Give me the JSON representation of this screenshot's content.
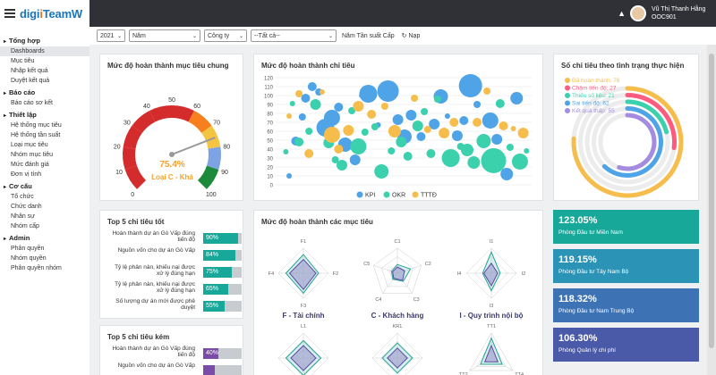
{
  "brand": {
    "logo_a": "digi",
    "logo_b": "i",
    "logo_c": "TeamW"
  },
  "user": {
    "name": "Vũ Thị Thanh Hằng",
    "code": "OOC901"
  },
  "sidebar": {
    "sections": [
      {
        "label": "Tổng hợp",
        "items": [
          "Dashboards",
          "Mục tiêu",
          "Nhập kết quả",
          "Duyệt kết quả"
        ]
      },
      {
        "label": "Báo cáo",
        "items": [
          "Báo cáo sơ kết"
        ]
      },
      {
        "label": "Thiết lập",
        "items": [
          "Hệ thống mục tiêu",
          "Hệ thống tần suất",
          "Loại mục tiêu",
          "Nhóm mục tiêu",
          "Mức đánh giá",
          "Đơn vị tính"
        ]
      },
      {
        "label": "Cơ cấu",
        "items": [
          "Tổ chức",
          "Chức danh",
          "Nhân sự",
          "Nhóm cấp"
        ]
      },
      {
        "label": "Admin",
        "items": [
          "Phân quyền",
          "Nhóm quyền",
          "Phân quyền nhóm"
        ]
      }
    ]
  },
  "filters": {
    "year": "2021",
    "period": "Năm",
    "company": "Công ty",
    "all": "--Tất cả--",
    "freq_label": "Năm Tần suất Cấp",
    "reload": "Nạp"
  },
  "gauge_card": {
    "title": "Mức độ hoàn thành mục tiêu chung",
    "value": "75.4%",
    "grade": "Loại C - Khá",
    "ticks": [
      "0",
      "10",
      "20",
      "30",
      "40",
      "50",
      "60",
      "70",
      "80",
      "90",
      "100"
    ],
    "needle_value": 75.4
  },
  "bubble_card": {
    "title": "Mức độ hoàn thành chỉ tiêu",
    "chart_data": {
      "type": "scatter",
      "title": "Mức độ hoàn thành chỉ tiêu",
      "ylim": [
        0,
        120
      ],
      "yticks": [
        "0",
        "10",
        "20",
        "30",
        "40",
        "50",
        "60",
        "70",
        "80",
        "90",
        "100",
        "110",
        "120"
      ],
      "series": [
        {
          "name": "KPI",
          "color": "#4ea4e6",
          "points": [
            [
              3,
              10,
              3
            ],
            [
              5,
              49,
              5
            ],
            [
              7,
              76,
              4
            ],
            [
              8,
              97,
              5
            ],
            [
              10,
              110,
              5
            ],
            [
              12,
              104,
              4
            ],
            [
              14,
              64,
              10
            ],
            [
              16,
              75,
              9
            ],
            [
              18,
              87,
              5
            ],
            [
              20,
              45,
              8
            ],
            [
              23,
              28,
              6
            ],
            [
              25,
              100,
              3
            ],
            [
              27,
              102,
              10
            ],
            [
              30,
              67,
              3
            ],
            [
              33,
              105,
              12
            ],
            [
              36,
              73,
              6
            ],
            [
              38,
              54,
              8
            ],
            [
              40,
              78,
              6
            ],
            [
              43,
              54,
              5
            ],
            [
              47,
              68,
              6
            ],
            [
              49,
              99,
              8
            ],
            [
              51,
              77,
              3
            ],
            [
              54,
              55,
              6
            ],
            [
              56,
              72,
              5
            ],
            [
              58,
              111,
              13
            ],
            [
              60,
              90,
              4
            ],
            [
              64,
              72,
              9
            ],
            [
              66,
              51,
              6
            ],
            [
              69,
              12,
              7
            ],
            [
              72,
              97,
              7
            ]
          ]
        },
        {
          "name": "OKR",
          "color": "#3bd1ad",
          "points": [
            [
              2,
              37,
              3
            ],
            [
              4,
              91,
              3
            ],
            [
              6,
              48,
              5
            ],
            [
              9,
              60,
              4
            ],
            [
              11,
              90,
              6
            ],
            [
              15,
              47,
              6
            ],
            [
              17,
              28,
              4
            ],
            [
              19,
              22,
              6
            ],
            [
              22,
              83,
              4
            ],
            [
              24,
              43,
              9
            ],
            [
              26,
              59,
              4
            ],
            [
              29,
              65,
              4
            ],
            [
              31,
              15,
              8
            ],
            [
              34,
              38,
              4
            ],
            [
              37,
              48,
              6
            ],
            [
              39,
              32,
              5
            ],
            [
              42,
              66,
              6
            ],
            [
              44,
              82,
              4
            ],
            [
              46,
              35,
              5
            ],
            [
              48,
              96,
              4
            ],
            [
              52,
              30,
              10
            ],
            [
              55,
              43,
              4
            ],
            [
              57,
              39,
              7
            ],
            [
              59,
              25,
              7
            ],
            [
              62,
              49,
              8
            ],
            [
              65,
              27,
              14
            ],
            [
              67,
              91,
              5
            ],
            [
              70,
              42,
              4
            ],
            [
              73,
              26,
              9
            ],
            [
              75,
              38,
              3
            ]
          ]
        },
        {
          "name": "TTTĐ",
          "color": "#f6bd4c",
          "points": [
            [
              3,
              77,
              3
            ],
            [
              6,
              102,
              4
            ],
            [
              9,
              35,
              5
            ],
            [
              13,
              104,
              3
            ],
            [
              16,
              56,
              9
            ],
            [
              18,
              40,
              5
            ],
            [
              21,
              61,
              6
            ],
            [
              24,
              88,
              6
            ],
            [
              28,
              79,
              5
            ],
            [
              32,
              88,
              4
            ],
            [
              35,
              60,
              7
            ],
            [
              41,
              97,
              4
            ],
            [
              45,
              62,
              4
            ],
            [
              50,
              58,
              6
            ],
            [
              53,
              70,
              5
            ],
            [
              60,
              70,
              5
            ],
            [
              63,
              105,
              4
            ],
            [
              68,
              66,
              5
            ],
            [
              71,
              63,
              3
            ],
            [
              74,
              58,
              6
            ]
          ]
        }
      ],
      "legend": "bottom"
    }
  },
  "status_card": {
    "title": "Số chỉ tiêu theo tình trạng thực hiện",
    "chart_data": {
      "type": "radial-bar",
      "categories": [
        "Đã hoàn thành: 76",
        "Chậm tiến độ: 27",
        "Thiếu số liệu: 21",
        "Sai tiến độ: 62",
        "Kết quả thấp: 55"
      ],
      "values": [
        76,
        27,
        21,
        62,
        55
      ],
      "colors": [
        "#f6bd4c",
        "#ff5b7f",
        "#3bd1ad",
        "#4ea4e6",
        "#a48de0"
      ]
    }
  },
  "top_good": {
    "title": "Top 5 chỉ tiêu tốt",
    "rows": [
      {
        "label": "Hoàn thành dự án Gò Vấp đúng tiến độ",
        "value": "90%",
        "pct": 90
      },
      {
        "label": "Nguồn vốn cho dự án Gò Vấp",
        "value": "84%",
        "pct": 84
      },
      {
        "label": "Tỷ lệ phản nàn, khiếu nại được xử lý đúng hạn",
        "value": "75%",
        "pct": 75
      },
      {
        "label": "Tỷ lệ phản nàn, khiếu nại được xử lý đúng hạn",
        "value": "65%",
        "pct": 65
      },
      {
        "label": "Số lượng dự án mới được phê duyệt",
        "value": "55%",
        "pct": 55
      }
    ]
  },
  "top_bad": {
    "title": "Top 5 chỉ tiêu kém",
    "rows": [
      {
        "label": "Hoàn thành dự án Gò Vấp đúng tiến độ",
        "value": "40%",
        "pct": 40
      },
      {
        "label": "Nguồn vốn cho dự án Gò Vấp",
        "value": "",
        "pct": 30
      }
    ]
  },
  "radar_card": {
    "title": "Mức độ hoàn thành các mục tiêu",
    "charts": [
      {
        "title": "F - Tài chính",
        "axes": [
          "F1",
          "F2",
          "F3",
          "F4"
        ],
        "a": [
          0.75,
          0.6,
          0.8,
          0.7
        ],
        "b": [
          0.55,
          0.5,
          0.65,
          0.55
        ]
      },
      {
        "title": "C - Khách hàng",
        "axes": [
          "C1",
          "C2",
          "C3",
          "C4",
          "C5"
        ],
        "a": [
          0.35,
          0.55,
          0.4,
          0.3,
          0.25
        ],
        "b": [
          0.25,
          0.3,
          0.35,
          0.25,
          0.2
        ]
      },
      {
        "title": "I - Quy trình nội bộ",
        "axes": [
          "I1",
          "I2",
          "I3",
          "I4"
        ],
        "a": [
          0.85,
          0.35,
          0.7,
          0.35
        ],
        "b": [
          0.4,
          0.25,
          0.5,
          0.3
        ]
      },
      {
        "title": "",
        "axes": [
          "L1"
        ],
        "a": [
          0.7
        ],
        "b": [
          0.5
        ]
      },
      {
        "title": "",
        "axes": [
          "KR1"
        ],
        "a": [
          0.6
        ],
        "b": [
          0.4
        ]
      },
      {
        "title": "",
        "axes": [
          "TT1",
          "TT4",
          "TT2"
        ],
        "a": [
          0.8,
          0.5,
          0.5
        ],
        "b": [
          0.5,
          0.3,
          0.3
        ]
      }
    ]
  },
  "dept_cards": [
    {
      "value": "123.05%",
      "name": "Phòng Đầu tư Miền Nam",
      "color": "#17a89a"
    },
    {
      "value": "119.15%",
      "name": "Phòng Đầu tư Tây Nam Bộ",
      "color": "#2b94b6"
    },
    {
      "value": "118.32%",
      "name": "Phòng Đầu tư Nam Trung Bộ",
      "color": "#3d73b5"
    },
    {
      "value": "106.30%",
      "name": "Phòng Quản lý chi phí",
      "color": "#4b5aa8"
    }
  ]
}
